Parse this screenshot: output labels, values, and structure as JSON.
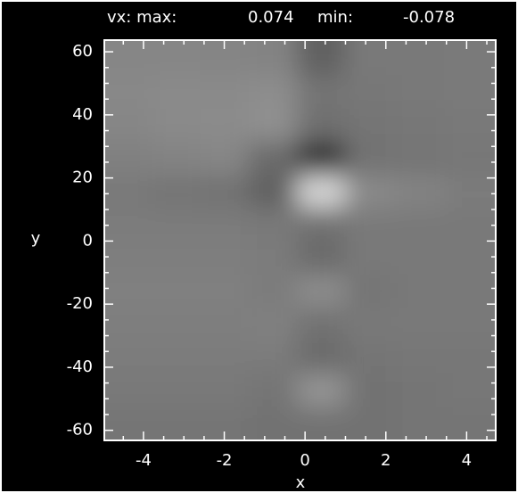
{
  "chart_data": {
    "type": "heatmap",
    "title": "vx: max:",
    "zmax": 0.074,
    "min_label": "min:",
    "zmin": -0.078,
    "xlabel": "x",
    "ylabel": "y",
    "xlim": [
      -4.97,
      4.72
    ],
    "ylim": [
      -63.2,
      63.7
    ],
    "xticks": [
      -4,
      -2,
      0,
      2,
      4
    ],
    "yticks": [
      -60,
      -40,
      -20,
      0,
      20,
      40,
      60
    ],
    "xminor": 4,
    "yminor": 4,
    "x": [
      -4.4,
      -3.2,
      -2,
      -0.8,
      0.4,
      1.6,
      2.8,
      4.1
    ],
    "y": [
      58,
      47,
      37,
      26,
      16,
      5,
      -5,
      -16,
      -26,
      -37,
      -47,
      -58
    ],
    "z": [
      [
        0.002,
        0.002,
        0.001,
        0.0,
        -0.02,
        -0.006,
        -0.006,
        -0.005
      ],
      [
        0.003,
        0.004,
        0.004,
        0.006,
        -0.008,
        -0.007,
        -0.006,
        -0.005
      ],
      [
        0.002,
        0.004,
        0.005,
        0.008,
        -0.012,
        -0.008,
        -0.007,
        -0.006
      ],
      [
        -0.002,
        0.0,
        0.002,
        -0.015,
        -0.05,
        -0.01,
        -0.008,
        -0.007
      ],
      [
        -0.006,
        -0.008,
        -0.01,
        -0.02,
        0.05,
        0.004,
        0.0,
        -0.004
      ],
      [
        -0.004,
        -0.004,
        -0.004,
        -0.006,
        -0.012,
        -0.006,
        -0.006,
        -0.006
      ],
      [
        -0.003,
        -0.003,
        -0.003,
        -0.004,
        -0.015,
        -0.006,
        -0.006,
        -0.006
      ],
      [
        -0.002,
        -0.002,
        -0.002,
        -0.004,
        0.006,
        -0.008,
        -0.006,
        -0.006
      ],
      [
        -0.003,
        -0.003,
        -0.003,
        -0.002,
        -0.01,
        -0.006,
        -0.006,
        -0.006
      ],
      [
        -0.004,
        -0.004,
        -0.004,
        -0.004,
        -0.015,
        -0.008,
        -0.007,
        -0.007
      ],
      [
        -0.006,
        -0.006,
        -0.006,
        -0.008,
        0.01,
        -0.01,
        -0.008,
        -0.007
      ],
      [
        -0.008,
        -0.008,
        -0.008,
        -0.01,
        -0.01,
        -0.01,
        -0.009,
        -0.008
      ]
    ]
  }
}
